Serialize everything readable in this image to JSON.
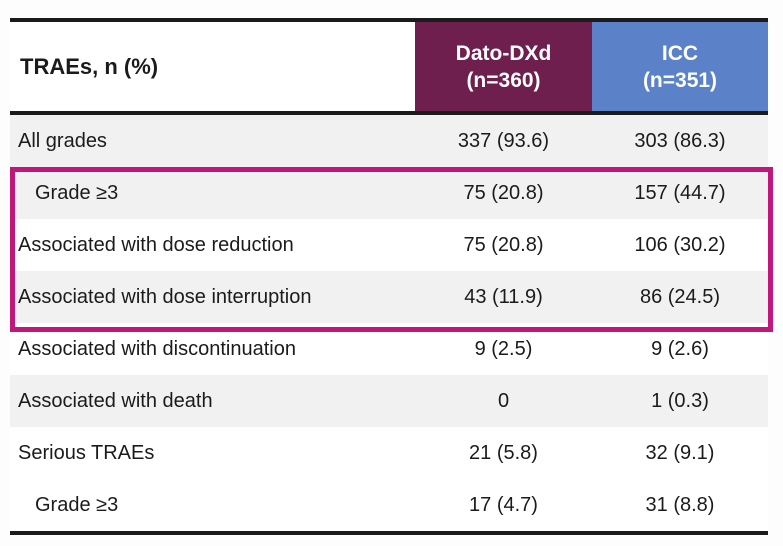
{
  "table": {
    "header": {
      "row_label": "TRAEs, n (%)",
      "col_dato": {
        "line1": "Dato-DXd",
        "line2": "(n=360)"
      },
      "col_icc": {
        "line1": "ICC",
        "line2": "(n=351)"
      }
    },
    "rows": [
      {
        "label": "All grades",
        "dato": "337 (93.6)",
        "icc": "303 (86.3)",
        "indent": false,
        "shaded": true,
        "highlighted": false
      },
      {
        "label": "Grade ≥3",
        "dato": "75 (20.8)",
        "icc": "157 (44.7)",
        "indent": true,
        "shaded": true,
        "highlighted": true
      },
      {
        "label": "Associated with dose reduction",
        "dato": "75 (20.8)",
        "icc": "106 (30.2)",
        "indent": false,
        "shaded": false,
        "highlighted": true
      },
      {
        "label": "Associated with dose interruption",
        "dato": "43 (11.9)",
        "icc": "86 (24.5)",
        "indent": false,
        "shaded": true,
        "highlighted": true
      },
      {
        "label": "Associated with discontinuation",
        "dato": "9 (2.5)",
        "icc": "9 (2.6)",
        "indent": false,
        "shaded": false,
        "highlighted": false
      },
      {
        "label": "Associated with death",
        "dato": "0",
        "icc": "1 (0.3)",
        "indent": false,
        "shaded": true,
        "highlighted": false
      },
      {
        "label": "Serious TRAEs",
        "dato": "21 (5.8)",
        "icc": "32 (9.1)",
        "indent": false,
        "shaded": false,
        "highlighted": false
      },
      {
        "label": "Grade ≥3",
        "dato": "17 (4.7)",
        "icc": "31 (8.8)",
        "indent": true,
        "shaded": false,
        "highlighted": false
      }
    ]
  },
  "colors": {
    "dato_header_bg": "#6e1f4e",
    "icc_header_bg": "#5b82c8",
    "highlight_border": "#c0177d",
    "row_shade": "#f1f1f1",
    "rule": "#1b1b1b"
  }
}
